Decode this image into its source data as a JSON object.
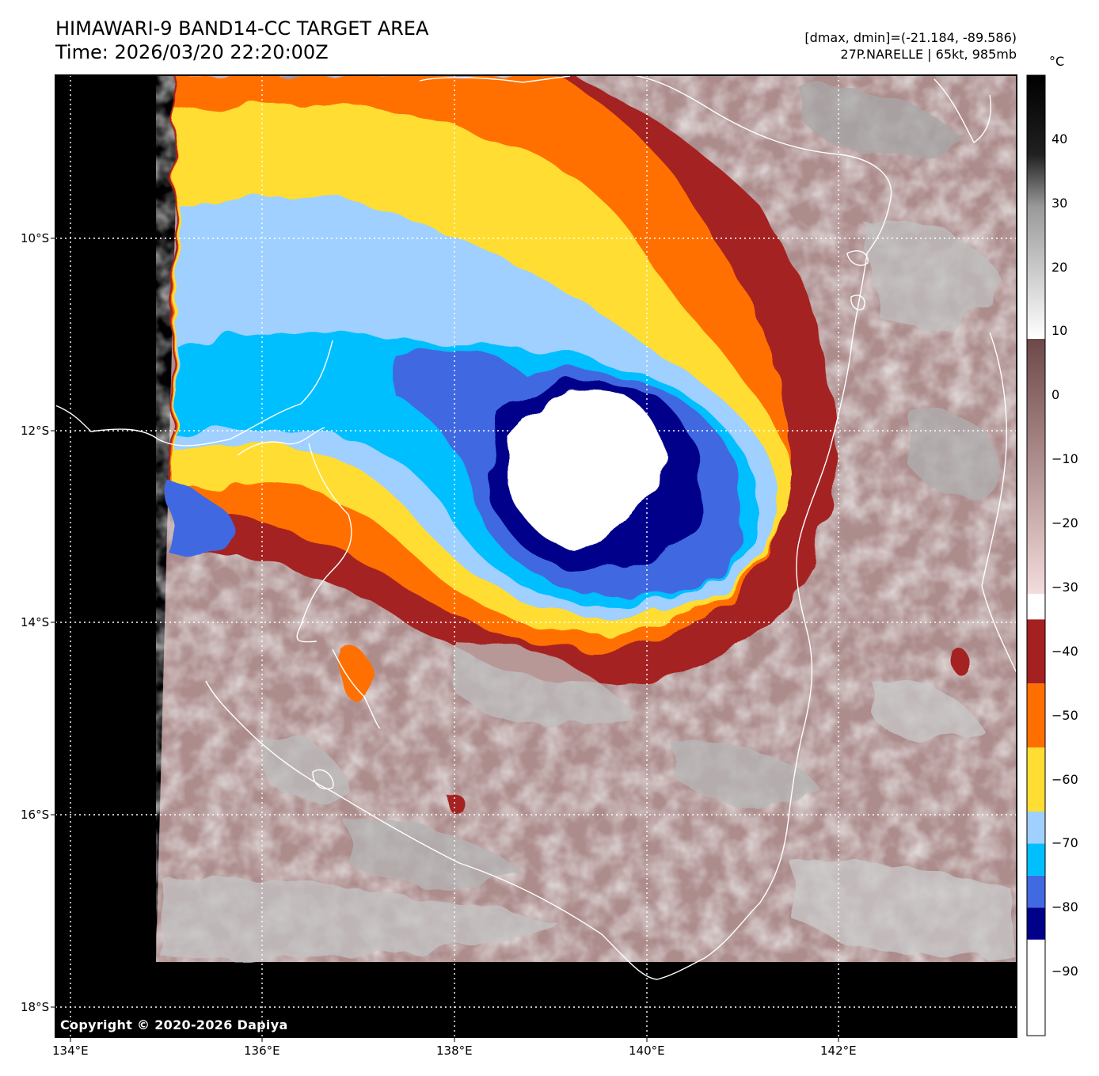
{
  "header": {
    "title": "HIMAWARI-9 BAND14-CC TARGET AREA",
    "time": "Time: 2026/03/20 22:20:00Z",
    "range": "[dmax, dmin]=(-21.184, -89.586)",
    "storm": "27P.NARELLE | 65kt, 985mb"
  },
  "axes": {
    "lat_ticks": [
      "10°S",
      "12°S",
      "14°S",
      "16°S",
      "18°S"
    ],
    "lon_ticks": [
      "134°E",
      "136°E",
      "138°E",
      "140°E",
      "142°E"
    ]
  },
  "colorbar": {
    "unit": "°C",
    "ticks": [
      "40",
      "30",
      "20",
      "10",
      "0",
      "−10",
      "−20",
      "−30",
      "−40",
      "−50",
      "−60",
      "−70",
      "−80",
      "−90"
    ],
    "segments": [
      {
        "from": -100,
        "to": -85,
        "color": "#ffffff"
      },
      {
        "from": -85,
        "to": -80,
        "color": "#00008b"
      },
      {
        "from": -80,
        "to": -75,
        "color": "#4169e1"
      },
      {
        "from": -75,
        "to": -70,
        "color": "#00bfff"
      },
      {
        "from": -70,
        "to": -65,
        "color": "#a0d0ff"
      },
      {
        "from": -65,
        "to": -55,
        "color": "#ffdd33"
      },
      {
        "from": -55,
        "to": -45,
        "color": "#ff6f00"
      },
      {
        "from": -45,
        "to": -35,
        "color": "#a52020"
      }
    ]
  },
  "colors": {
    "cloud_top_warm": "#7a5555",
    "land_background": "#d8c0c0",
    "space": "#000000",
    "coastline": "#ffffff",
    "grid": "#ffffff"
  },
  "footer": {
    "copyright": "Copyright © 2020-2026 Dapiya"
  }
}
